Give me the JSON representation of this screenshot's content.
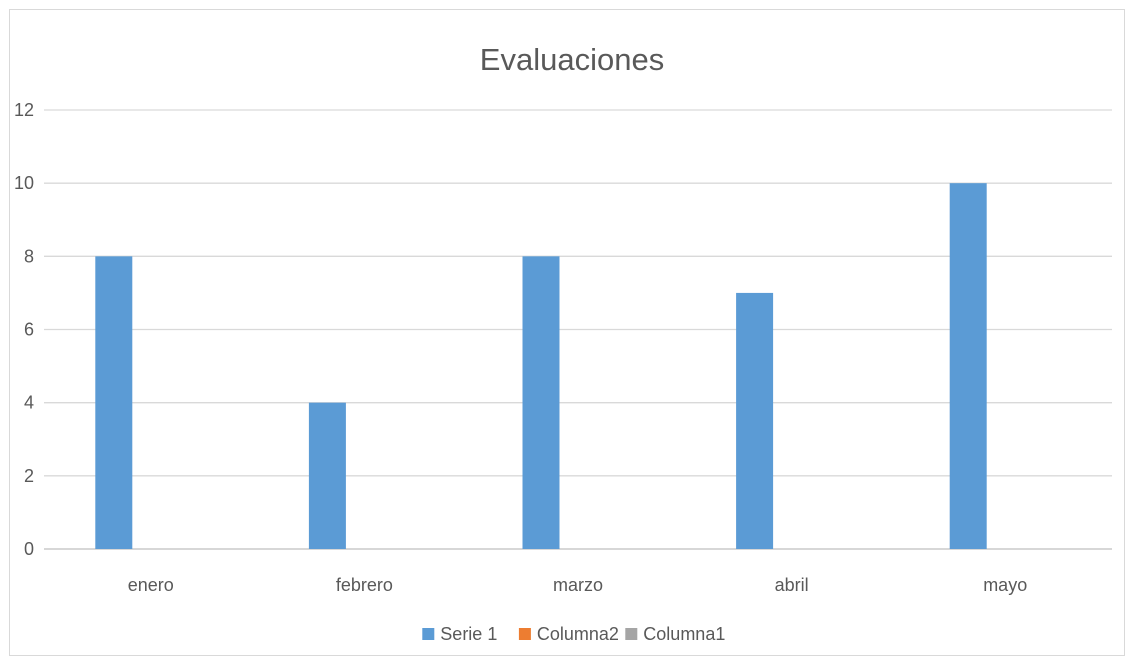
{
  "chart_data": {
    "type": "bar",
    "title": "Evaluaciones",
    "xlabel": "",
    "ylabel": "",
    "categories": [
      "enero",
      "febrero",
      "marzo",
      "abril",
      "mayo"
    ],
    "series": [
      {
        "name": "Serie 1",
        "color": "#5b9bd5",
        "values": [
          8,
          4,
          8,
          7,
          10
        ]
      },
      {
        "name": "Columna2",
        "color": "#ed7d31",
        "values": [
          null,
          null,
          null,
          null,
          null
        ]
      },
      {
        "name": "Columna1",
        "color": "#a5a5a5",
        "values": [
          null,
          null,
          null,
          null,
          null
        ]
      }
    ],
    "ylim": [
      0,
      12
    ],
    "yticks": [
      "0",
      "2",
      "4",
      "6",
      "8",
      "10",
      "12"
    ],
    "grid": true,
    "legend": "bottom"
  }
}
